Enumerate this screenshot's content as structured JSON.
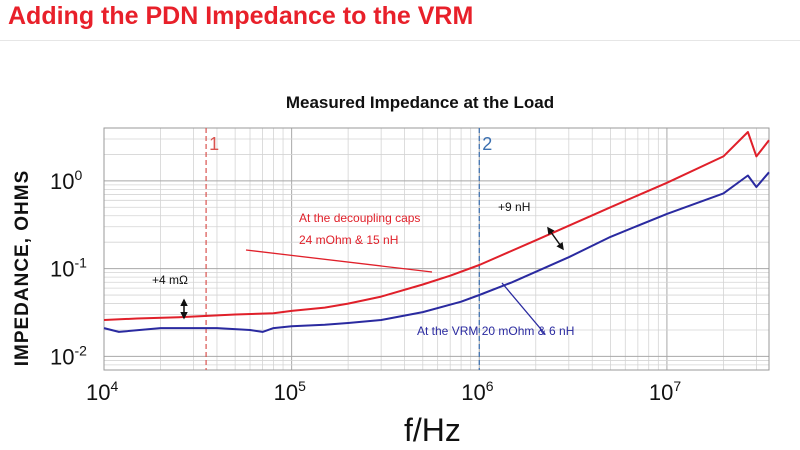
{
  "slide": {
    "title": "Adding the PDN Impedance to the VRM"
  },
  "chart_data": {
    "type": "line",
    "title": "Measured Impedance at the Load",
    "xlabel": "f/Hz",
    "ylabel": "IMPEDANCE, OHMS",
    "x_scale": "log",
    "y_scale": "log",
    "xlim": [
      10000,
      35000000
    ],
    "ylim": [
      0.007,
      4
    ],
    "grid": true,
    "x_ticks": [
      {
        "base": "10",
        "exp": "4",
        "value": 10000
      },
      {
        "base": "10",
        "exp": "5",
        "value": 100000
      },
      {
        "base": "10",
        "exp": "6",
        "value": 1000000
      },
      {
        "base": "10",
        "exp": "7",
        "value": 10000000
      }
    ],
    "y_ticks": [
      {
        "base": "10",
        "exp": "0",
        "value": 1
      },
      {
        "base": "10",
        "exp": "-1",
        "value": 0.1
      },
      {
        "base": "10",
        "exp": "-2",
        "value": 0.01
      }
    ],
    "markers": [
      {
        "label": "1",
        "x": 35000,
        "color": "#d9534f"
      },
      {
        "label": "2",
        "x": 1000000,
        "color": "#3a6fb0"
      }
    ],
    "series": [
      {
        "color": "#e0202a",
        "x": [
          10000,
          15000,
          25000,
          50000,
          80000,
          100000,
          150000,
          200000,
          300000,
          500000,
          700000,
          1000000,
          2000000,
          5000000,
          10000000,
          20000000,
          27000000,
          30000000,
          35000000
        ],
        "y": [
          0.026,
          0.027,
          0.028,
          0.03,
          0.031,
          0.033,
          0.036,
          0.04,
          0.048,
          0.066,
          0.083,
          0.11,
          0.21,
          0.5,
          0.95,
          1.9,
          3.6,
          1.9,
          2.9
        ]
      },
      {
        "color": "#2a2aa0",
        "x": [
          10000,
          12000,
          20000,
          40000,
          60000,
          70000,
          80000,
          100000,
          150000,
          200000,
          300000,
          500000,
          800000,
          1000000,
          1500000,
          3000000,
          5000000,
          10000000,
          20000000,
          27000000,
          30000000,
          35000000
        ],
        "y": [
          0.021,
          0.019,
          0.021,
          0.021,
          0.02,
          0.019,
          0.021,
          0.022,
          0.023,
          0.024,
          0.026,
          0.032,
          0.042,
          0.05,
          0.07,
          0.135,
          0.23,
          0.42,
          0.72,
          1.15,
          0.85,
          1.25
        ]
      }
    ],
    "annotations": [
      {
        "id": "red-label-1",
        "text": "At the decoupling caps",
        "color": "#e0202a"
      },
      {
        "id": "red-label-2",
        "text": "24 mOhm & 15 nH",
        "color": "#e0202a"
      },
      {
        "id": "blue-label",
        "text": "At the VRM 20 mOhm & 6 nH",
        "color": "#2a2aa0"
      },
      {
        "id": "delta-r",
        "text": "+4 mΩ",
        "color": "#111111"
      },
      {
        "id": "delta-l",
        "text": "+9 nH",
        "color": "#111111"
      }
    ]
  }
}
